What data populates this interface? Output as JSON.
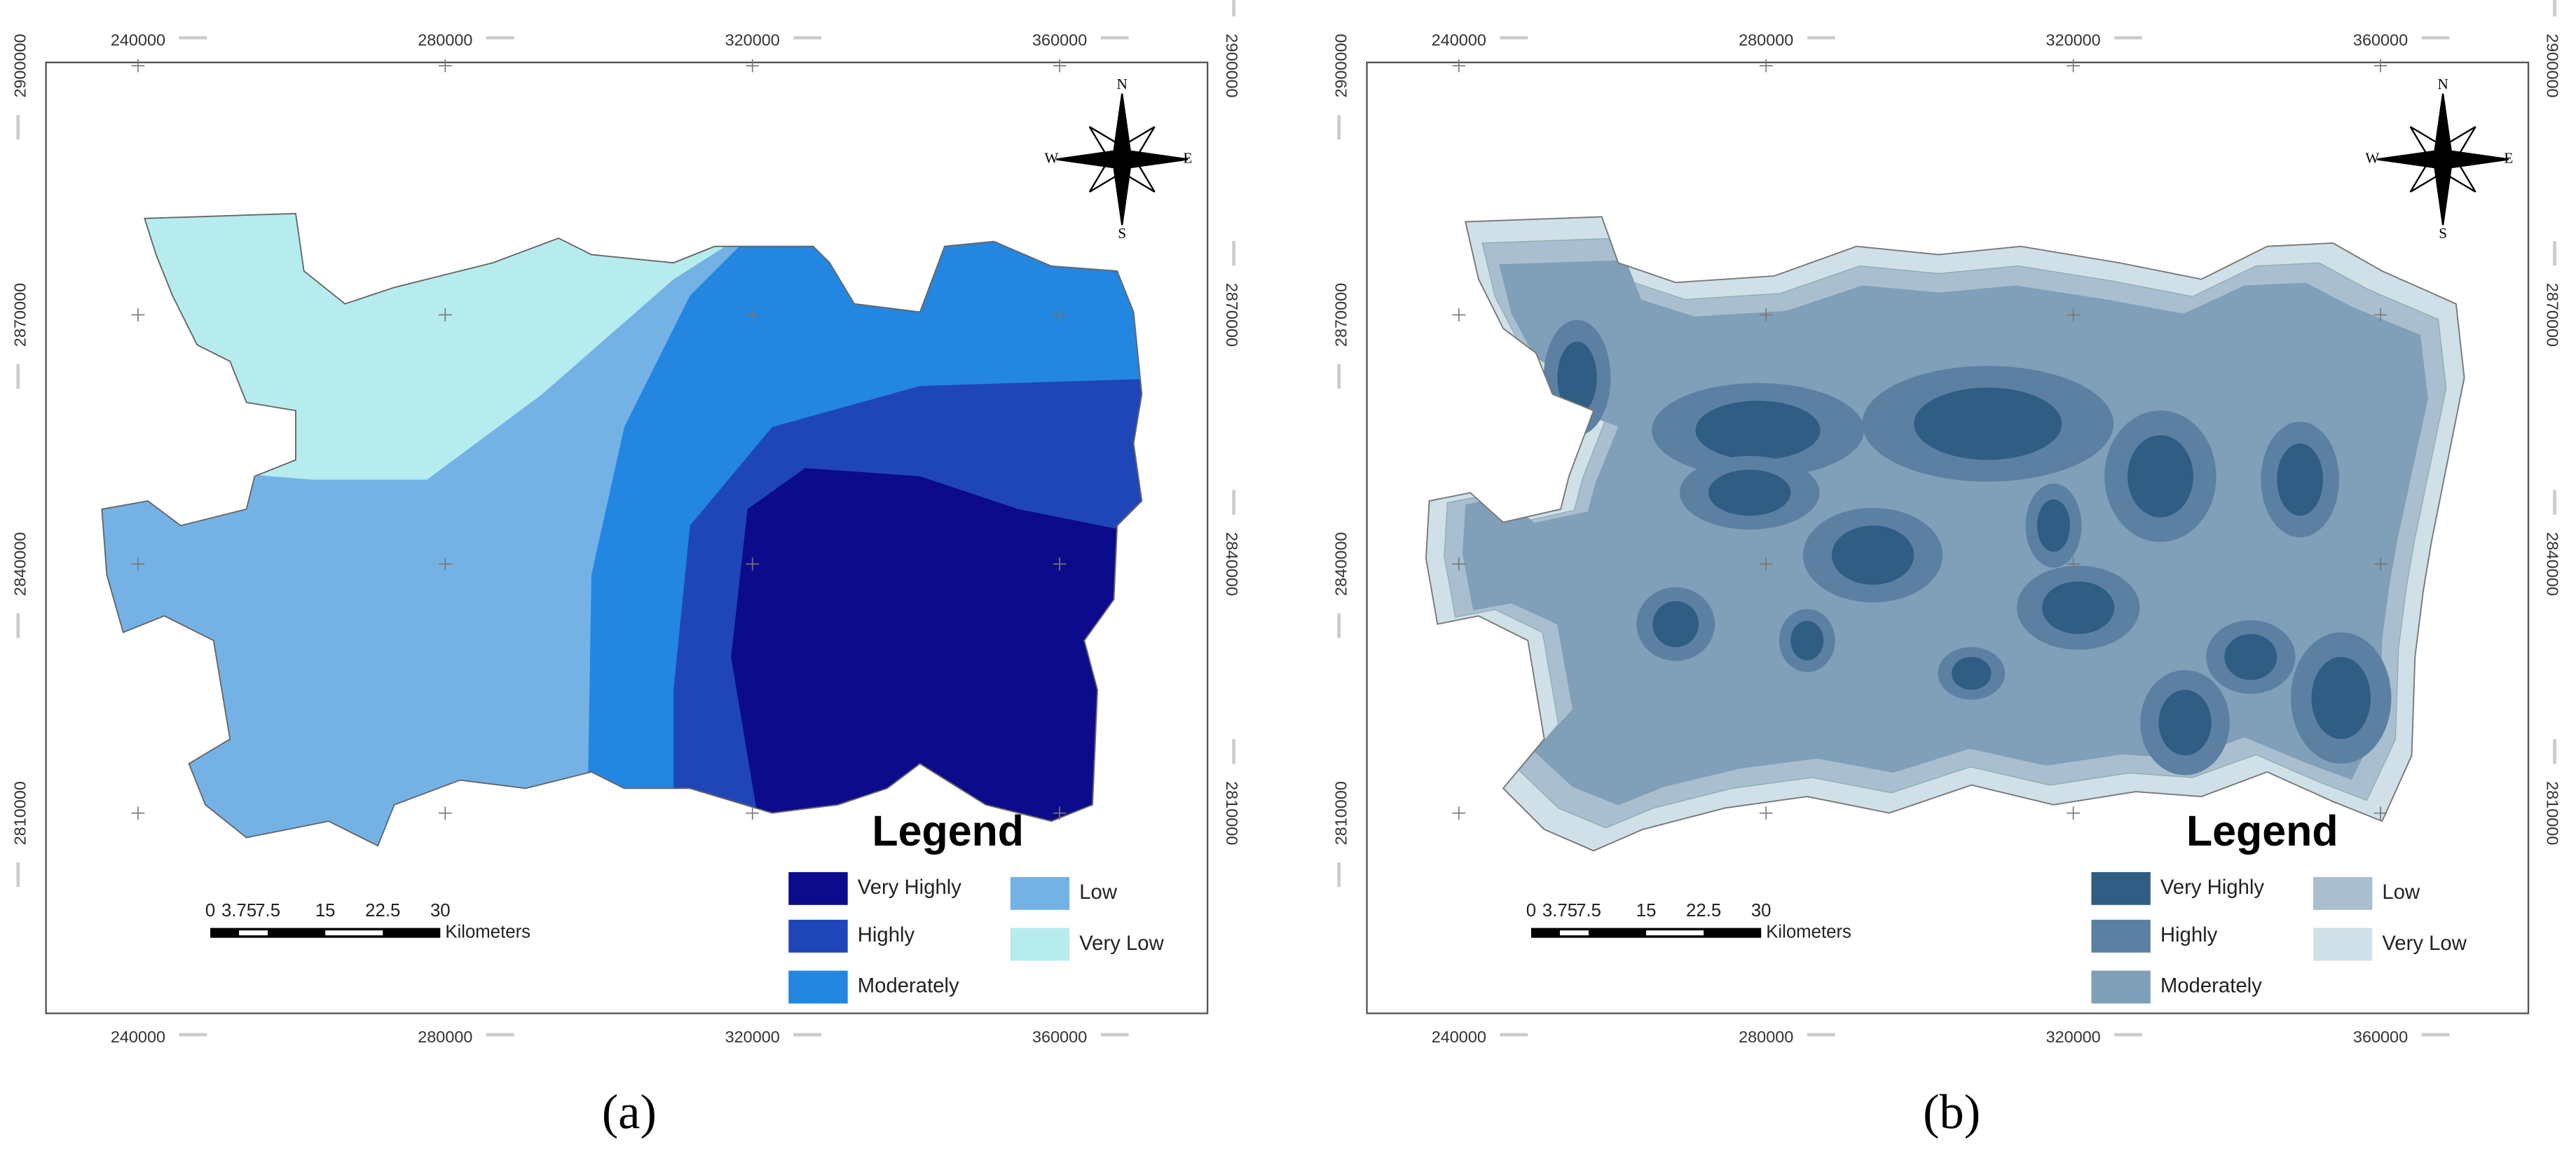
{
  "panels": [
    {
      "caption": "(a)",
      "x_labels": [
        240000,
        280000,
        320000,
        360000
      ],
      "y_labels": [
        2900000,
        2870000,
        2840000,
        2810000
      ],
      "compass": {
        "n": "N",
        "e": "E",
        "s": "S",
        "w": "W"
      },
      "legend": {
        "title": "Legend",
        "items": [
          {
            "label": "Very Highly",
            "color": "#0b0b8c"
          },
          {
            "label": "Highly",
            "color": "#1f46b9"
          },
          {
            "label": "Moderately",
            "color": "#2386e0"
          },
          {
            "label": "Low",
            "color": "#74b2e6"
          },
          {
            "label": "Very Low",
            "color": "#b6ecee"
          }
        ]
      },
      "scale_bar": {
        "labels": [
          0,
          3.75,
          7.5,
          15,
          22.5,
          30
        ],
        "unit": "Kilometers"
      }
    },
    {
      "caption": "(b)",
      "x_labels": [
        240000,
        280000,
        320000,
        360000
      ],
      "y_labels": [
        2900000,
        2870000,
        2840000,
        2810000
      ],
      "compass": {
        "n": "N",
        "e": "E",
        "s": "S",
        "w": "W"
      },
      "legend": {
        "title": "Legend",
        "items": [
          {
            "label": "Very Highly",
            "color": "#2f5d83"
          },
          {
            "label": "Highly",
            "color": "#5b80a2"
          },
          {
            "label": "Moderately",
            "color": "#809fb8"
          },
          {
            "label": "Low",
            "color": "#a9bfcf"
          },
          {
            "label": "Very Low",
            "color": "#d0e0e8"
          }
        ]
      },
      "scale_bar": {
        "labels": [
          0,
          3.75,
          7.5,
          15,
          22.5,
          30
        ],
        "unit": "Kilometers"
      }
    }
  ]
}
